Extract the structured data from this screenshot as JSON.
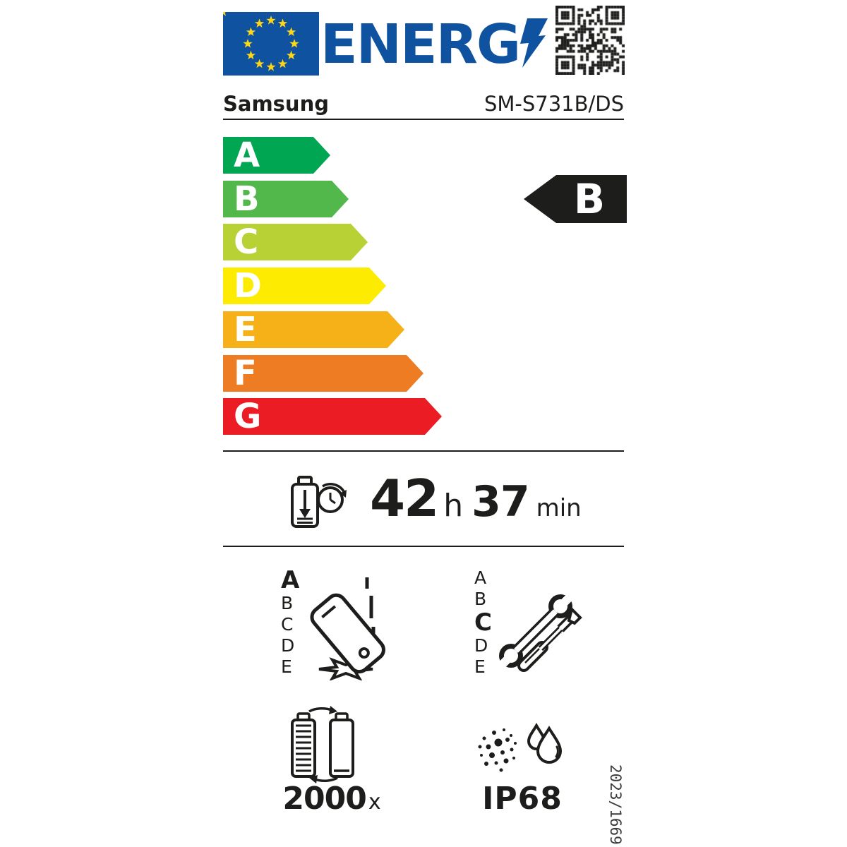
{
  "label": {
    "logo": {
      "text": "ENERG",
      "flag_icon": "eu-flag-icon",
      "bolt_icon": "lightning-bolt-icon",
      "qr_icon": "qr-code"
    },
    "supplier": {
      "brand": "Samsung",
      "model": "SM-S731B/DS"
    },
    "energy_scale": {
      "classes": [
        {
          "letter": "A",
          "color": "#00a651"
        },
        {
          "letter": "B",
          "color": "#52b84b"
        },
        {
          "letter": "C",
          "color": "#b8d235"
        },
        {
          "letter": "D",
          "color": "#fdeb02"
        },
        {
          "letter": "E",
          "color": "#f6b119"
        },
        {
          "letter": "F",
          "color": "#ee7c23"
        },
        {
          "letter": "G",
          "color": "#ec1c24"
        }
      ],
      "rated_class": "B",
      "indicator_color": "#1d1d1b"
    },
    "battery_endurance": {
      "icon": "battery-endurance-icon",
      "hours": "42",
      "hours_unit": "h",
      "minutes": "37",
      "minutes_unit": "min"
    },
    "drop_reliability": {
      "icon": "falling-phone-icon",
      "scale": [
        "A",
        "B",
        "C",
        "D",
        "E"
      ],
      "rated_class": "A"
    },
    "repairability": {
      "icon": "repair-tools-icon",
      "scale": [
        "A",
        "B",
        "C",
        "D",
        "E"
      ],
      "rated_class": "C"
    },
    "battery_cycles": {
      "icon": "battery-cycle-icon",
      "value": "2000",
      "unit": "x"
    },
    "ingress_protection": {
      "icon": "dust-water-icon",
      "rating": "IP68"
    },
    "regulation_number": "2023/1669",
    "colors": {
      "eu_blue": "#0e52a0",
      "star_yellow": "#ffd617",
      "ink": "#1d1d1b"
    }
  }
}
